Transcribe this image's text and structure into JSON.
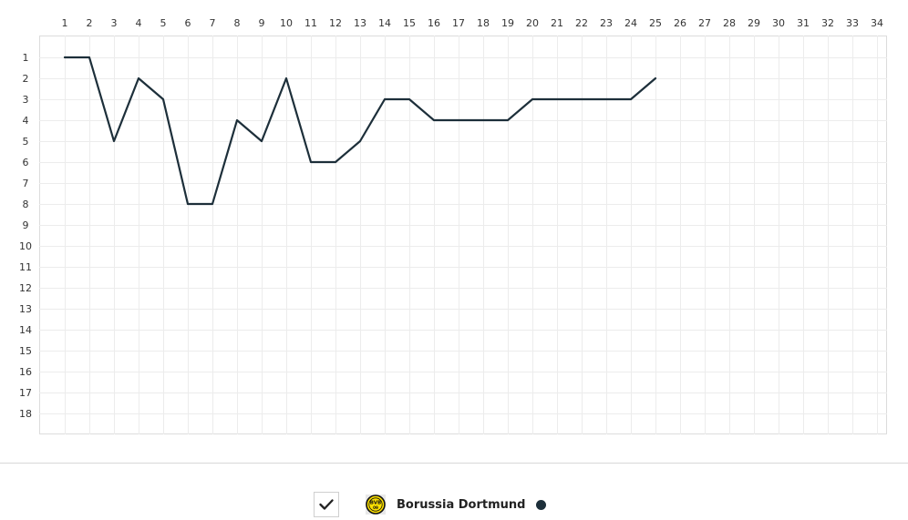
{
  "chart_data": {
    "type": "line",
    "x": [
      1,
      2,
      3,
      4,
      5,
      6,
      7,
      8,
      9,
      10,
      11,
      12,
      13,
      14,
      15,
      16,
      17,
      18,
      19,
      20,
      21,
      22,
      23,
      24,
      25
    ],
    "x_ticks": [
      "1",
      "2",
      "3",
      "4",
      "5",
      "6",
      "7",
      "8",
      "9",
      "10",
      "11",
      "12",
      "13",
      "14",
      "15",
      "16",
      "17",
      "18",
      "19",
      "20",
      "21",
      "22",
      "23",
      "24",
      "25",
      "26",
      "27",
      "28",
      "29",
      "30",
      "31",
      "32",
      "33",
      "34"
    ],
    "y_ticks": [
      "1",
      "2",
      "3",
      "4",
      "5",
      "6",
      "7",
      "8",
      "9",
      "10",
      "11",
      "12",
      "13",
      "14",
      "15",
      "16",
      "17",
      "18"
    ],
    "xlim": [
      1,
      34
    ],
    "ylim": [
      1,
      18
    ],
    "y_inverted": true,
    "grid": true,
    "series": [
      {
        "name": "Borussia Dortmund",
        "values": [
          1,
          1,
          5,
          2,
          3,
          8,
          8,
          4,
          5,
          2,
          6,
          6,
          5,
          3,
          3,
          4,
          4,
          4,
          4,
          3,
          3,
          3,
          3,
          3,
          2
        ],
        "color": "#1d2f3a"
      }
    ]
  },
  "legend": {
    "checked": true,
    "check_icon": "checkmark-icon",
    "logo_icon": "bvb-logo-icon",
    "logo_text": "BVB 09",
    "team": "Borussia Dortmund",
    "dot_color": "#1d2f3a"
  }
}
